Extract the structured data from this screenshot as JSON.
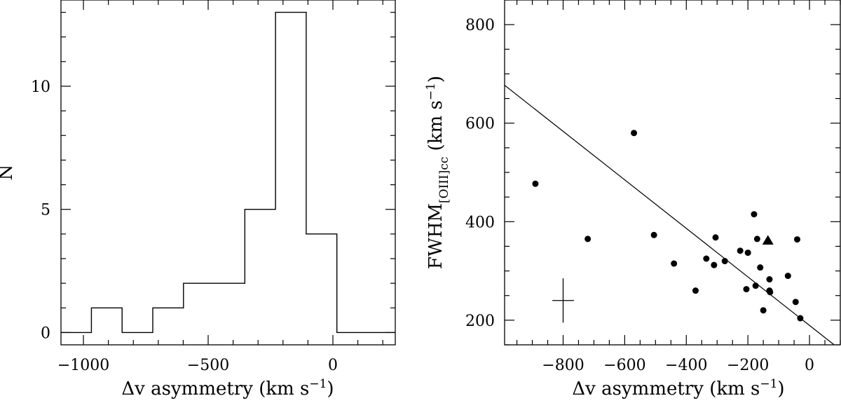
{
  "chart_data": [
    {
      "type": "bar",
      "subtype": "step-histogram",
      "xlabel_prefix": "Δv asymmetry (km s",
      "xlabel_sup": "−1",
      "xlabel_suffix": ")",
      "ylabel": "N",
      "xlim": [
        -1090,
        250
      ],
      "ylim": [
        -0.5,
        13.5
      ],
      "xticks_major": [
        -1000,
        -500,
        0
      ],
      "xtick_labels": [
        "−1000",
        "−500",
        "0"
      ],
      "yticks_major": [
        0,
        5,
        10
      ],
      "ytick_labels": [
        "0",
        "5",
        "10"
      ],
      "bin_edges": [
        -1090,
        -968,
        -845,
        -722,
        -599,
        -476,
        -353,
        -230,
        -107,
        16,
        250
      ],
      "counts": [
        0,
        1,
        0,
        1,
        2,
        2,
        5,
        13,
        4,
        0
      ],
      "grid": false
    },
    {
      "type": "scatter",
      "xlabel_prefix": "Δv asymmetry (km s",
      "xlabel_sup": "−1",
      "xlabel_suffix": ")",
      "ylabel_main": "FWHM",
      "ylabel_sub": "[OIII]cc",
      "ylabel_unit": " (km s",
      "ylabel_sup": "−1",
      "ylabel_close": ")",
      "xlim": [
        -990,
        100
      ],
      "ylim": [
        150,
        850
      ],
      "xticks_major": [
        -800,
        -600,
        -400,
        -200,
        0
      ],
      "xtick_labels": [
        "−800",
        "−600",
        "−400",
        "−200",
        "0"
      ],
      "yticks_major": [
        200,
        400,
        600,
        800
      ],
      "ytick_labels": [
        "200",
        "400",
        "600",
        "800"
      ],
      "points": [
        {
          "x": -890,
          "y": 477
        },
        {
          "x": -720,
          "y": 365
        },
        {
          "x": -570,
          "y": 580
        },
        {
          "x": -505,
          "y": 373
        },
        {
          "x": -440,
          "y": 315
        },
        {
          "x": -370,
          "y": 260
        },
        {
          "x": -335,
          "y": 325
        },
        {
          "x": -310,
          "y": 312
        },
        {
          "x": -305,
          "y": 368
        },
        {
          "x": -275,
          "y": 320
        },
        {
          "x": -225,
          "y": 341
        },
        {
          "x": -205,
          "y": 263
        },
        {
          "x": -200,
          "y": 337
        },
        {
          "x": -180,
          "y": 415
        },
        {
          "x": -175,
          "y": 270
        },
        {
          "x": -170,
          "y": 365
        },
        {
          "x": -160,
          "y": 307
        },
        {
          "x": -150,
          "y": 220
        },
        {
          "x": -130,
          "y": 283
        },
        {
          "x": -130,
          "y": 260
        },
        {
          "x": -128,
          "y": 257
        },
        {
          "x": -70,
          "y": 290
        },
        {
          "x": -45,
          "y": 237
        },
        {
          "x": -40,
          "y": 364
        },
        {
          "x": -30,
          "y": 204
        }
      ],
      "special_point": {
        "x": -135,
        "y": 362,
        "marker": "triangle"
      },
      "fit_line": {
        "x": [
          -990,
          80
        ],
        "y": [
          677,
          150
        ]
      },
      "error_cross": {
        "x": -800,
        "y": 240,
        "x_err": 35,
        "y_err": 45
      },
      "grid": false
    }
  ]
}
